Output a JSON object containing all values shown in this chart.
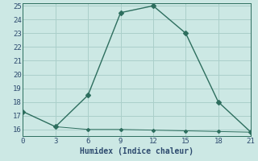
{
  "xlabel": "Humidex (Indice chaleur)",
  "x": [
    0,
    3,
    6,
    9,
    12,
    15,
    18,
    21
  ],
  "y_main": [
    17.3,
    16.2,
    18.5,
    24.5,
    25.0,
    23.0,
    18.0,
    15.8
  ],
  "y_flat": [
    3,
    6,
    9,
    12,
    15,
    18,
    21
  ],
  "y_flat_vals": [
    16.2,
    16.0,
    16.0,
    15.95,
    15.9,
    15.85,
    15.8
  ],
  "line_color": "#2d6e5e",
  "bg_color": "#cce8e4",
  "grid_color": "#aacfca",
  "tick_color": "#2d4a6e",
  "xlim": [
    0,
    21
  ],
  "ylim": [
    15.5,
    25.2
  ],
  "yticks": [
    16,
    17,
    18,
    19,
    20,
    21,
    22,
    23,
    24,
    25
  ],
  "xticks": [
    0,
    3,
    6,
    9,
    12,
    15,
    18,
    21
  ]
}
